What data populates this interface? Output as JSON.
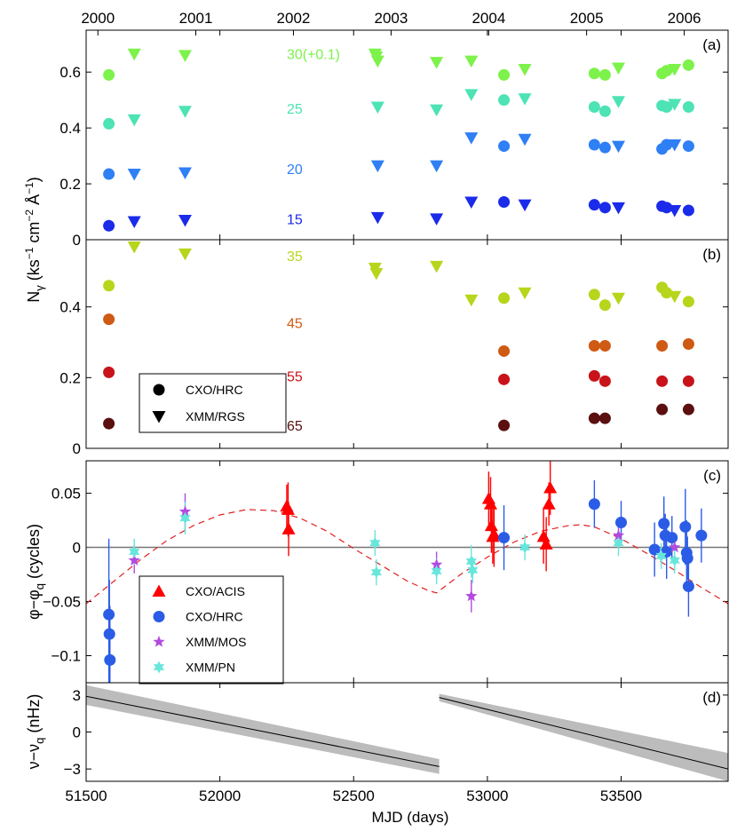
{
  "chart_data": {
    "type": "scatter",
    "xlabel": "MJD (days)",
    "shared_ylabel_ab": "Nγ (ks⁻¹ cm⁻² Å⁻¹)",
    "xlim": [
      51500,
      53900
    ],
    "x_ticks": [
      51500,
      52000,
      52500,
      53000,
      53500
    ],
    "year_axis": [
      {
        "label": "2000",
        "mjd": 51544
      },
      {
        "label": "2001",
        "mjd": 51910
      },
      {
        "label": "2002",
        "mjd": 52275
      },
      {
        "label": "2003",
        "mjd": 52640
      },
      {
        "label": "2004",
        "mjd": 53005
      },
      {
        "label": "2005",
        "mjd": 53371
      },
      {
        "label": "2006",
        "mjd": 53736
      }
    ],
    "panels": [
      {
        "id": "a",
        "label": "(a)",
        "ylim": [
          0,
          0.75
        ],
        "y_ticks": [
          0,
          0.2,
          0.4,
          0.6
        ],
        "y_tick_labels": [
          "0",
          "0.2",
          "0.4",
          "0.6"
        ],
        "annotations": [
          {
            "text": "30(+0.1)",
            "x": 52250,
            "y": 0.665,
            "color": "#7cf24a"
          },
          {
            "text": "25",
            "x": 52250,
            "y": 0.47,
            "color": "#4de3b4"
          },
          {
            "text": "20",
            "x": 52250,
            "y": 0.255,
            "color": "#2f7ff5"
          },
          {
            "text": "15",
            "x": 52250,
            "y": 0.075,
            "color": "#1b2bea"
          }
        ],
        "series": [
          {
            "name": "30(+0.1) CXO/HRC",
            "color": "#7cf24a",
            "marker": "circle",
            "x": [
              51585,
              53062,
              53400,
              53440,
              53653,
              53670,
              53752
            ],
            "y": [
              0.59,
              0.59,
              0.595,
              0.59,
              0.595,
              0.605,
              0.625
            ]
          },
          {
            "name": "30(+0.1) XMM/RGS",
            "color": "#7cf24a",
            "marker": "triangle-down",
            "x": [
              51680,
              51870,
              52580,
              52585,
              52590,
              52810,
              52940,
              53140,
              53490,
              53700
            ],
            "y": [
              0.665,
              0.66,
              0.665,
              0.655,
              0.64,
              0.635,
              0.64,
              0.61,
              0.615,
              0.61
            ]
          },
          {
            "name": "25 CXO/HRC",
            "color": "#4de3b4",
            "marker": "circle",
            "x": [
              51585,
              53062,
              53400,
              53440,
              53653,
              53670,
              53752
            ],
            "y": [
              0.415,
              0.5,
              0.475,
              0.46,
              0.48,
              0.475,
              0.475
            ]
          },
          {
            "name": "25 XMM/RGS",
            "color": "#4de3b4",
            "marker": "triangle-down",
            "x": [
              51680,
              51870,
              52590,
              52810,
              52940,
              53140,
              53490,
              53700
            ],
            "y": [
              0.43,
              0.46,
              0.475,
              0.465,
              0.52,
              0.505,
              0.495,
              0.485
            ]
          },
          {
            "name": "20 CXO/HRC",
            "color": "#2f7ff5",
            "marker": "circle",
            "x": [
              51585,
              53062,
              53400,
              53440,
              53653,
              53670,
              53752
            ],
            "y": [
              0.235,
              0.335,
              0.34,
              0.33,
              0.325,
              0.34,
              0.335
            ]
          },
          {
            "name": "20 XMM/RGS",
            "color": "#2f7ff5",
            "marker": "triangle-down",
            "x": [
              51680,
              51870,
              52590,
              52810,
              52940,
              53140,
              53490,
              53700
            ],
            "y": [
              0.235,
              0.24,
              0.265,
              0.265,
              0.365,
              0.36,
              0.335,
              0.34
            ]
          },
          {
            "name": "15 CXO/HRC",
            "color": "#1b2bea",
            "marker": "circle",
            "x": [
              51585,
              53062,
              53400,
              53440,
              53653,
              53670,
              53752
            ],
            "y": [
              0.05,
              0.135,
              0.125,
              0.115,
              0.12,
              0.115,
              0.105
            ]
          },
          {
            "name": "15 XMM/RGS",
            "color": "#1b2bea",
            "marker": "triangle-down",
            "x": [
              51680,
              51870,
              52590,
              52810,
              52940,
              53140,
              53490,
              53700
            ],
            "y": [
              0.065,
              0.07,
              0.08,
              0.075,
              0.135,
              0.125,
              0.115,
              0.105
            ]
          }
        ]
      },
      {
        "id": "b",
        "label": "(b)",
        "ylim": [
          0,
          0.59
        ],
        "y_ticks": [
          0,
          0.2,
          0.4
        ],
        "y_tick_labels": [
          "0",
          "0.2",
          "0.4"
        ],
        "annotations": [
          {
            "text": "35",
            "x": 52250,
            "y": 0.545,
            "color": "#b7d51b"
          },
          {
            "text": "45",
            "x": 52250,
            "y": 0.355,
            "color": "#cf5a14"
          },
          {
            "text": "55",
            "x": 52250,
            "y": 0.205,
            "color": "#c8131a"
          },
          {
            "text": "65",
            "x": 52250,
            "y": 0.065,
            "color": "#5b0f0f"
          }
        ],
        "legend": {
          "position": "bottom-left",
          "entries": [
            {
              "label": "CXO/HRC",
              "marker": "circle"
            },
            {
              "label": "XMM/RGS",
              "marker": "triangle-down"
            }
          ]
        },
        "series": [
          {
            "name": "35 CXO/HRC",
            "color": "#b7d51b",
            "marker": "circle",
            "x": [
              51585,
              53062,
              53400,
              53440,
              53653,
              53670,
              53752
            ],
            "y": [
              0.46,
              0.425,
              0.435,
              0.405,
              0.455,
              0.44,
              0.415
            ]
          },
          {
            "name": "35 XMM/RGS",
            "color": "#b7d51b",
            "marker": "triangle-down",
            "x": [
              51680,
              51870,
              52580,
              52585,
              52810,
              52940,
              53140,
              53490,
              53700
            ],
            "y": [
              0.57,
              0.55,
              0.51,
              0.495,
              0.515,
              0.42,
              0.44,
              0.425,
              0.43
            ]
          },
          {
            "name": "45 CXO/HRC",
            "color": "#cf5a14",
            "marker": "circle",
            "x": [
              51585,
              53062,
              53400,
              53440,
              53653,
              53752
            ],
            "y": [
              0.365,
              0.275,
              0.29,
              0.29,
              0.29,
              0.295
            ]
          },
          {
            "name": "55 CXO/HRC",
            "color": "#c8131a",
            "marker": "circle",
            "x": [
              51585,
              53062,
              53400,
              53440,
              53653,
              53752
            ],
            "y": [
              0.215,
              0.195,
              0.205,
              0.19,
              0.19,
              0.19
            ]
          },
          {
            "name": "65 CXO/HRC",
            "color": "#5b0f0f",
            "marker": "circle",
            "x": [
              51585,
              53062,
              53400,
              53440,
              53653,
              53752
            ],
            "y": [
              0.07,
              0.065,
              0.085,
              0.085,
              0.11,
              0.11
            ]
          }
        ]
      },
      {
        "id": "c",
        "label": "(c)",
        "ylabel": "φ−φq (cycles)",
        "ylim": [
          -0.125,
          0.08
        ],
        "y_ticks": [
          -0.1,
          -0.05,
          0,
          0.05
        ],
        "y_tick_labels": [
          "−0.1",
          "−0.05",
          "0",
          "0.05"
        ],
        "legend": {
          "position": "bottom-left",
          "entries": [
            {
              "label": "CXO/ACIS",
              "marker": "triangle-up",
              "color": "#ff0000"
            },
            {
              "label": "CXO/HRC",
              "marker": "circle",
              "color": "#2b5ce6"
            },
            {
              "label": "XMM/MOS",
              "marker": "star",
              "color": "#b24ae0"
            },
            {
              "label": "XMM/PN",
              "marker": "star6",
              "color": "#67e6dc"
            }
          ]
        },
        "model_curve": {
          "style": "dashed",
          "color": "#e02020",
          "x": [
            51500,
            51600,
            51700,
            51800,
            51900,
            52000,
            52100,
            52200,
            52300,
            52400,
            52500,
            52600,
            52700,
            52780,
            52810,
            52900,
            53000,
            53100,
            53200,
            53300,
            53350,
            53400,
            53500,
            53600,
            53700,
            53800,
            53900
          ],
          "y": [
            -0.052,
            -0.032,
            -0.012,
            0.006,
            0.02,
            0.03,
            0.035,
            0.034,
            0.027,
            0.015,
            -0.001,
            -0.016,
            -0.031,
            -0.04,
            -0.042,
            -0.025,
            -0.009,
            0.005,
            0.015,
            0.02,
            0.021,
            0.019,
            0.008,
            -0.006,
            -0.021,
            -0.037,
            -0.052
          ]
        },
        "series": [
          {
            "name": "CXO/ACIS",
            "color": "#ff0000",
            "marker": "triangle-up",
            "x": [
              52250,
              52255,
              52257,
              53005,
              53012,
              53015,
              53020,
              53025,
              53210,
              53220,
              53230,
              53235
            ],
            "y": [
              0.038,
              0.035,
              0.017,
              0.045,
              0.04,
              0.02,
              0.01,
              0.012,
              0.01,
              0.003,
              0.04,
              0.055
            ],
            "err": [
              0.02,
              0.025,
              0.025,
              0.025,
              0.025,
              0.025,
              0.025,
              0.03,
              0.025,
              0.025,
              0.02,
              0.025
            ]
          },
          {
            "name": "CXO/HRC",
            "color": "#2b5ce6",
            "marker": "circle",
            "x": [
              51585,
              51587,
              51589,
              53062,
              53400,
              53500,
              53625,
              53660,
              53665,
              53670,
              53690,
              53740,
              53745,
              53748,
              53752,
              53800
            ],
            "y": [
              -0.062,
              -0.08,
              -0.104,
              0.009,
              0.04,
              0.023,
              -0.002,
              0.022,
              0.011,
              -0.004,
              0.009,
              0.019,
              -0.005,
              -0.01,
              -0.036,
              0.011
            ],
            "err": [
              0.07,
              0.05,
              0.05,
              0.03,
              0.022,
              0.02,
              0.025,
              0.025,
              0.02,
              0.025,
              0.02,
              0.035,
              0.03,
              0.02,
              0.028,
              0.025
            ]
          },
          {
            "name": "XMM/MOS",
            "color": "#b24ae0",
            "marker": "star",
            "x": [
              51680,
              51870,
              52810,
              52940,
              53490,
              53700
            ],
            "y": [
              -0.012,
              0.033,
              -0.016,
              -0.045,
              0.011,
              0.0
            ],
            "err": [
              0.012,
              0.017,
              0.012,
              0.015,
              0.012,
              0.012
            ]
          },
          {
            "name": "XMM/PN",
            "color": "#67e6dc",
            "marker": "star6",
            "x": [
              51680,
              51870,
              52580,
              52585,
              52810,
              52940,
              52945,
              53140,
              53490,
              53650,
              53700
            ],
            "y": [
              -0.004,
              0.027,
              0.004,
              -0.023,
              -0.022,
              -0.013,
              -0.021,
              0.0,
              0.004,
              -0.008,
              -0.012
            ],
            "err": [
              0.012,
              0.015,
              0.012,
              0.012,
              0.012,
              0.015,
              0.012,
              0.012,
              0.012,
              0.012,
              0.012
            ]
          }
        ]
      },
      {
        "id": "d",
        "label": "(d)",
        "ylabel": "ν−νq (nHz)",
        "ylim": [
          -4,
          4
        ],
        "y_ticks": [
          -3,
          0,
          3
        ],
        "y_tick_labels": [
          "−3",
          "0",
          "3"
        ],
        "bands": [
          {
            "x": [
              51500,
              52820
            ],
            "center": [
              2.9,
              -2.8
            ],
            "upper": [
              3.8,
              -2.2
            ],
            "lower": [
              2.2,
              -3.4
            ],
            "color": "#bcbcbc"
          },
          {
            "x": [
              52820,
              53900
            ],
            "center": [
              2.8,
              -3.0
            ],
            "upper": [
              3.1,
              -1.7
            ],
            "lower": [
              2.5,
              -4.0
            ],
            "color": "#bcbcbc"
          }
        ]
      }
    ]
  }
}
